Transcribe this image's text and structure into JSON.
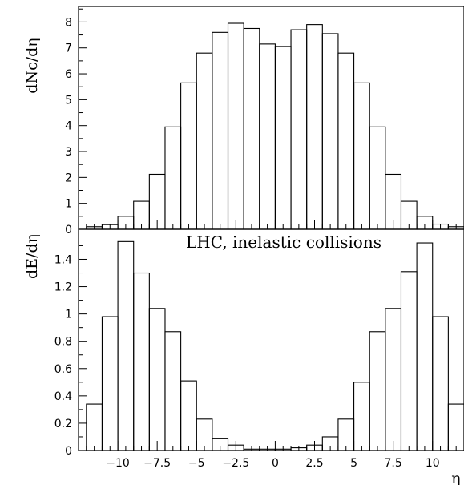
{
  "chart_data": [
    {
      "type": "histogram",
      "ylabel": "dNc/dη",
      "ylim": [
        0,
        8.6
      ],
      "yticks": [
        0,
        1,
        2,
        3,
        4,
        5,
        6,
        7,
        8
      ],
      "xlim": [
        -12.5,
        12
      ],
      "bin_edges": [
        -12,
        -11,
        -10,
        -9,
        -8,
        -7,
        -6,
        -5,
        -4,
        -3,
        -2,
        -1,
        0,
        1,
        2,
        3,
        4,
        5,
        6,
        7,
        8,
        9,
        10,
        11,
        12
      ],
      "values": [
        0.1,
        0.18,
        0.5,
        1.08,
        2.12,
        3.95,
        5.65,
        6.8,
        7.6,
        7.95,
        7.75,
        7.15,
        7.05,
        7.7,
        7.9,
        7.55,
        6.8,
        5.65,
        3.95,
        2.12,
        1.08,
        0.5,
        0.2,
        0.1
      ]
    },
    {
      "type": "histogram",
      "ylabel": "dE/dη",
      "annotation": "LHC, inelastic collisions",
      "xlabel": "η",
      "ylim": [
        0,
        1.62
      ],
      "yticks": [
        0,
        0.2,
        0.4,
        0.6,
        0.8,
        1,
        1.2,
        1.4
      ],
      "ytick_labels": [
        "0",
        "0.2",
        "0.4",
        "0.6",
        "0.8",
        "1",
        "1.2",
        "1.4"
      ],
      "xticks": [
        -10,
        -7.5,
        -5,
        -2.5,
        0,
        2.5,
        5,
        7.5,
        10
      ],
      "xtick_labels": [
        "−10",
        "−7.5",
        "−5",
        "−2.5",
        "0",
        "2.5",
        "5",
        "7.5",
        "10"
      ],
      "xlim": [
        -12.5,
        12
      ],
      "bin_edges": [
        -12,
        -11,
        -10,
        -9,
        -8,
        -7,
        -6,
        -5,
        -4,
        -3,
        -2,
        -1,
        0,
        1,
        2,
        3,
        4,
        5,
        6,
        7,
        8,
        9,
        10,
        11,
        12
      ],
      "values": [
        0.34,
        0.98,
        1.53,
        1.3,
        1.04,
        0.87,
        0.51,
        0.23,
        0.09,
        0.04,
        0.01,
        0.01,
        0.01,
        0.02,
        0.04,
        0.1,
        0.23,
        0.5,
        0.87,
        1.04,
        1.31,
        1.52,
        0.98,
        0.34
      ]
    }
  ]
}
